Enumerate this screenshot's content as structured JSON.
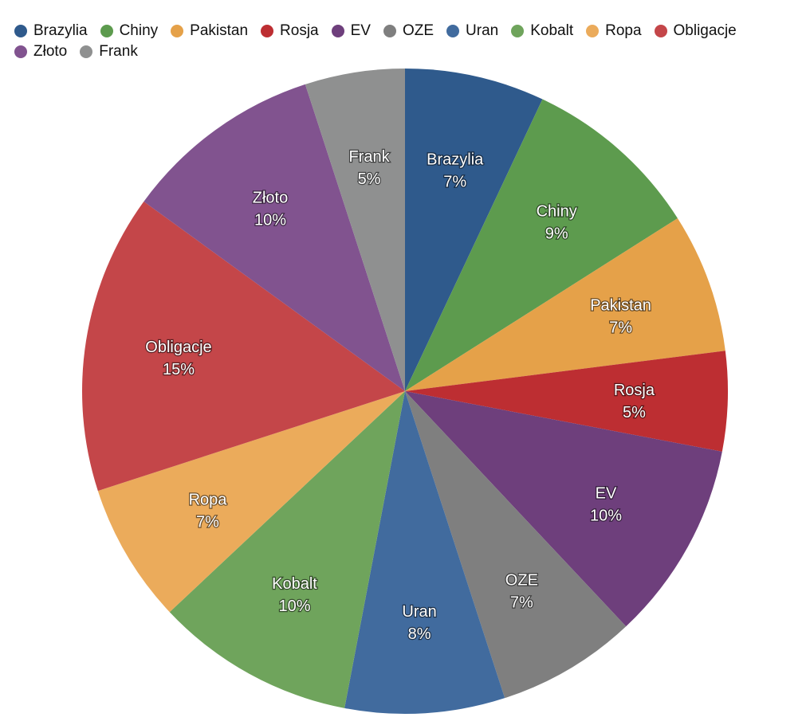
{
  "chart_data": {
    "type": "pie",
    "title": "",
    "legend_position": "top-left",
    "slices": [
      {
        "label": "Brazylia",
        "value": 7,
        "color": "#2f5a8c"
      },
      {
        "label": "Chiny",
        "value": 9,
        "color": "#5d9b4e"
      },
      {
        "label": "Pakistan",
        "value": 7,
        "color": "#e5a149"
      },
      {
        "label": "Rosja",
        "value": 5,
        "color": "#bd2e32"
      },
      {
        "label": "EV",
        "value": 10,
        "color": "#6e3f7c"
      },
      {
        "label": "OZE",
        "value": 7,
        "color": "#7f7f7f"
      },
      {
        "label": "Uran",
        "value": 8,
        "color": "#416b9e"
      },
      {
        "label": "Kobalt",
        "value": 10,
        "color": "#6fa45c"
      },
      {
        "label": "Ropa",
        "value": 7,
        "color": "#ebab5b"
      },
      {
        "label": "Obligacje",
        "value": 15,
        "color": "#c44649"
      },
      {
        "label": "Złoto",
        "value": 10,
        "color": "#81538f"
      },
      {
        "label": "Frank",
        "value": 5,
        "color": "#8f9090"
      }
    ]
  }
}
